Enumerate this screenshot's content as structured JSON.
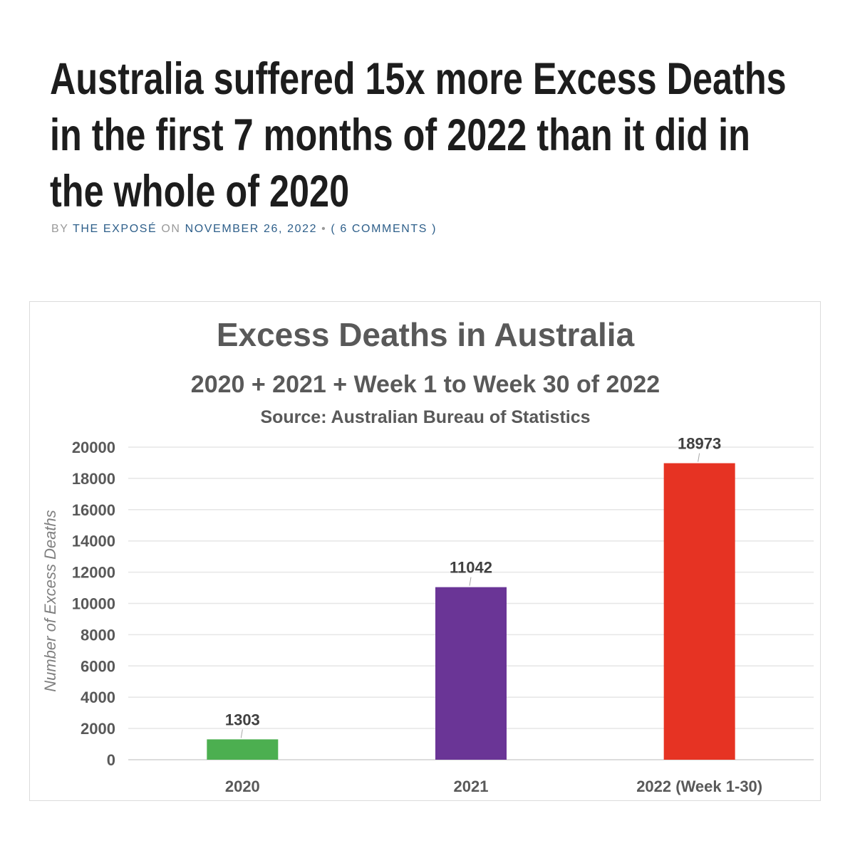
{
  "article": {
    "headline_lines": [
      "Australia suffered 15x more Excess Deaths",
      "in the first 7 months of 2022 than it did in",
      "the whole of 2020"
    ],
    "byline": {
      "by": "BY",
      "author": "THE EXPOSÉ",
      "on": "ON",
      "date": "NOVEMBER 26, 2022",
      "separator": "•",
      "comments": "( 6 COMMENTS )"
    }
  },
  "chart_data": {
    "type": "bar",
    "title": "Excess Deaths in Australia",
    "subtitle": "2020 + 2021 + Week 1 to Week 30 of 2022",
    "source": "Source: Australian Bureau of Statistics",
    "ylabel": "Number of Excess Deaths",
    "xlabel": "",
    "categories": [
      "2020",
      "2021",
      "2022 (Week 1-30)"
    ],
    "values": [
      1303,
      11042,
      18973
    ],
    "colors": [
      "#4caf50",
      "#6a3596",
      "#e63323"
    ],
    "ylim": [
      0,
      20000
    ],
    "yticks": [
      0,
      2000,
      4000,
      6000,
      8000,
      10000,
      12000,
      14000,
      16000,
      18000,
      20000
    ],
    "grid": true,
    "legend": "none"
  }
}
